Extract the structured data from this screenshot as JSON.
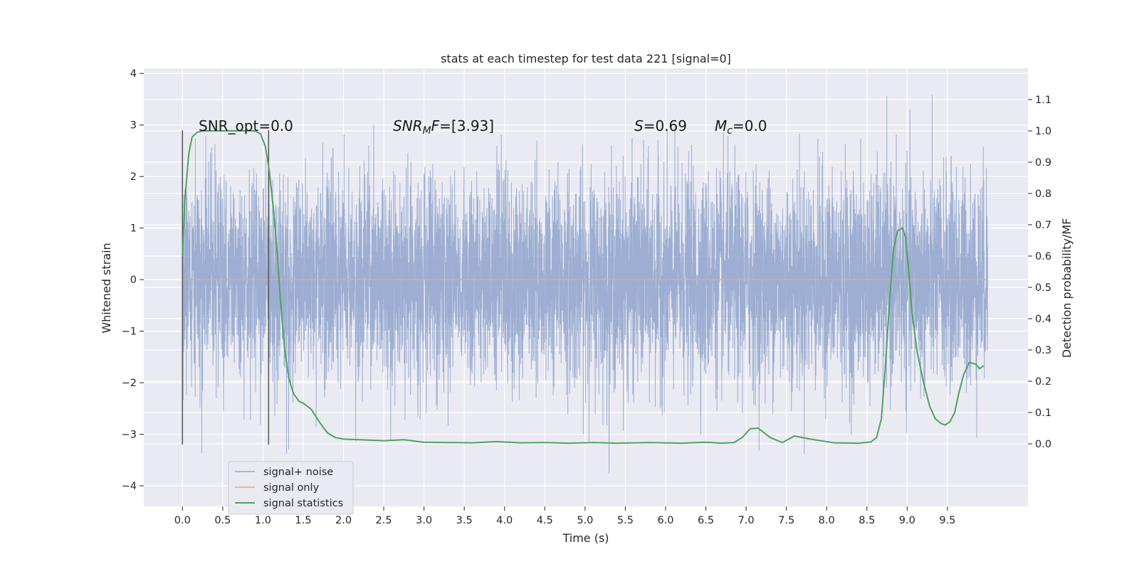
{
  "chart_data": {
    "type": "line",
    "title": "stats at each timestep for test data 221 [signal=0]",
    "xlabel": "Time (s)",
    "ylabel": "Whitened strain",
    "y2label": "Detection probability/MF",
    "xlim": [
      -0.48,
      10.5
    ],
    "ylim": [
      -4.4,
      4.1
    ],
    "y2lim": [
      -0.2,
      1.2
    ],
    "x_ticks": [
      "0.0",
      "0.5",
      "1.0",
      "1.5",
      "2.0",
      "2.5",
      "3.0",
      "3.5",
      "4.0",
      "4.5",
      "5.0",
      "5.5",
      "6.0",
      "6.5",
      "7.0",
      "7.5",
      "8.0",
      "8.5",
      "9.0",
      "9.5"
    ],
    "y_ticks": [
      "−4",
      "−3",
      "−2",
      "−1",
      "0",
      "1",
      "2",
      "3",
      "4"
    ],
    "y2_ticks": [
      "0.0",
      "0.1",
      "0.2",
      "0.3",
      "0.4",
      "0.5",
      "0.6",
      "0.7",
      "0.8",
      "0.9",
      "1.0",
      "1.1"
    ],
    "grid": true,
    "legend_position": "lower-left",
    "series": [
      {
        "name": "signal+ noise",
        "color": "#8fa3cc",
        "kind": "noise",
        "x_range": [
          0,
          10
        ],
        "sigma": 1.0
      },
      {
        "name": "signal only",
        "color": "#e8a58a",
        "kind": "constant",
        "value": 0
      },
      {
        "name": "signal statistics",
        "color": "#4ea25f",
        "kind": "line",
        "axis": "right",
        "x": [
          0.0,
          0.03,
          0.08,
          0.12,
          0.18,
          0.25,
          0.35,
          0.5,
          0.65,
          0.8,
          0.9,
          0.97,
          1.03,
          1.08,
          1.13,
          1.18,
          1.22,
          1.27,
          1.32,
          1.38,
          1.45,
          1.5,
          1.6,
          1.7,
          1.8,
          1.9,
          2.0,
          2.2,
          2.5,
          2.75,
          3.0,
          3.3,
          3.6,
          3.9,
          4.2,
          4.5,
          4.8,
          5.1,
          5.4,
          5.8,
          6.2,
          6.5,
          6.7,
          6.85,
          6.95,
          7.05,
          7.15,
          7.3,
          7.45,
          7.6,
          7.8,
          8.1,
          8.4,
          8.55,
          8.62,
          8.68,
          8.73,
          8.78,
          8.83,
          8.88,
          8.94,
          8.98,
          9.02,
          9.06,
          9.12,
          9.2,
          9.28,
          9.35,
          9.42,
          9.47,
          9.53,
          9.59,
          9.64,
          9.7,
          9.77,
          9.85,
          9.9,
          9.95
        ],
        "y": [
          0.6,
          0.78,
          0.93,
          0.98,
          0.995,
          1.0,
          1.0,
          1.0,
          1.0,
          1.0,
          1.0,
          0.99,
          0.95,
          0.87,
          0.75,
          0.6,
          0.45,
          0.3,
          0.21,
          0.16,
          0.135,
          0.13,
          0.11,
          0.07,
          0.035,
          0.02,
          0.015,
          0.013,
          0.01,
          0.013,
          0.005,
          0.004,
          0.003,
          0.007,
          0.003,
          0.004,
          0.002,
          0.004,
          0.002,
          0.004,
          0.002,
          0.005,
          0.002,
          0.004,
          0.02,
          0.048,
          0.05,
          0.02,
          0.004,
          0.025,
          0.015,
          0.003,
          0.002,
          0.006,
          0.02,
          0.08,
          0.25,
          0.45,
          0.62,
          0.68,
          0.69,
          0.66,
          0.55,
          0.42,
          0.3,
          0.2,
          0.12,
          0.08,
          0.065,
          0.06,
          0.07,
          0.1,
          0.16,
          0.22,
          0.26,
          0.255,
          0.24,
          0.25
        ]
      }
    ],
    "vlines": [
      0.0,
      1.07
    ],
    "annotations": [
      {
        "text": "SNR_opt=0.0",
        "x": 0.2
      },
      {
        "text": "SNRMF=[3.93]",
        "x": 2.6
      },
      {
        "text": "S=0.69",
        "x": 5.6
      },
      {
        "text": "Mc=0.0",
        "x": 6.6
      }
    ]
  }
}
